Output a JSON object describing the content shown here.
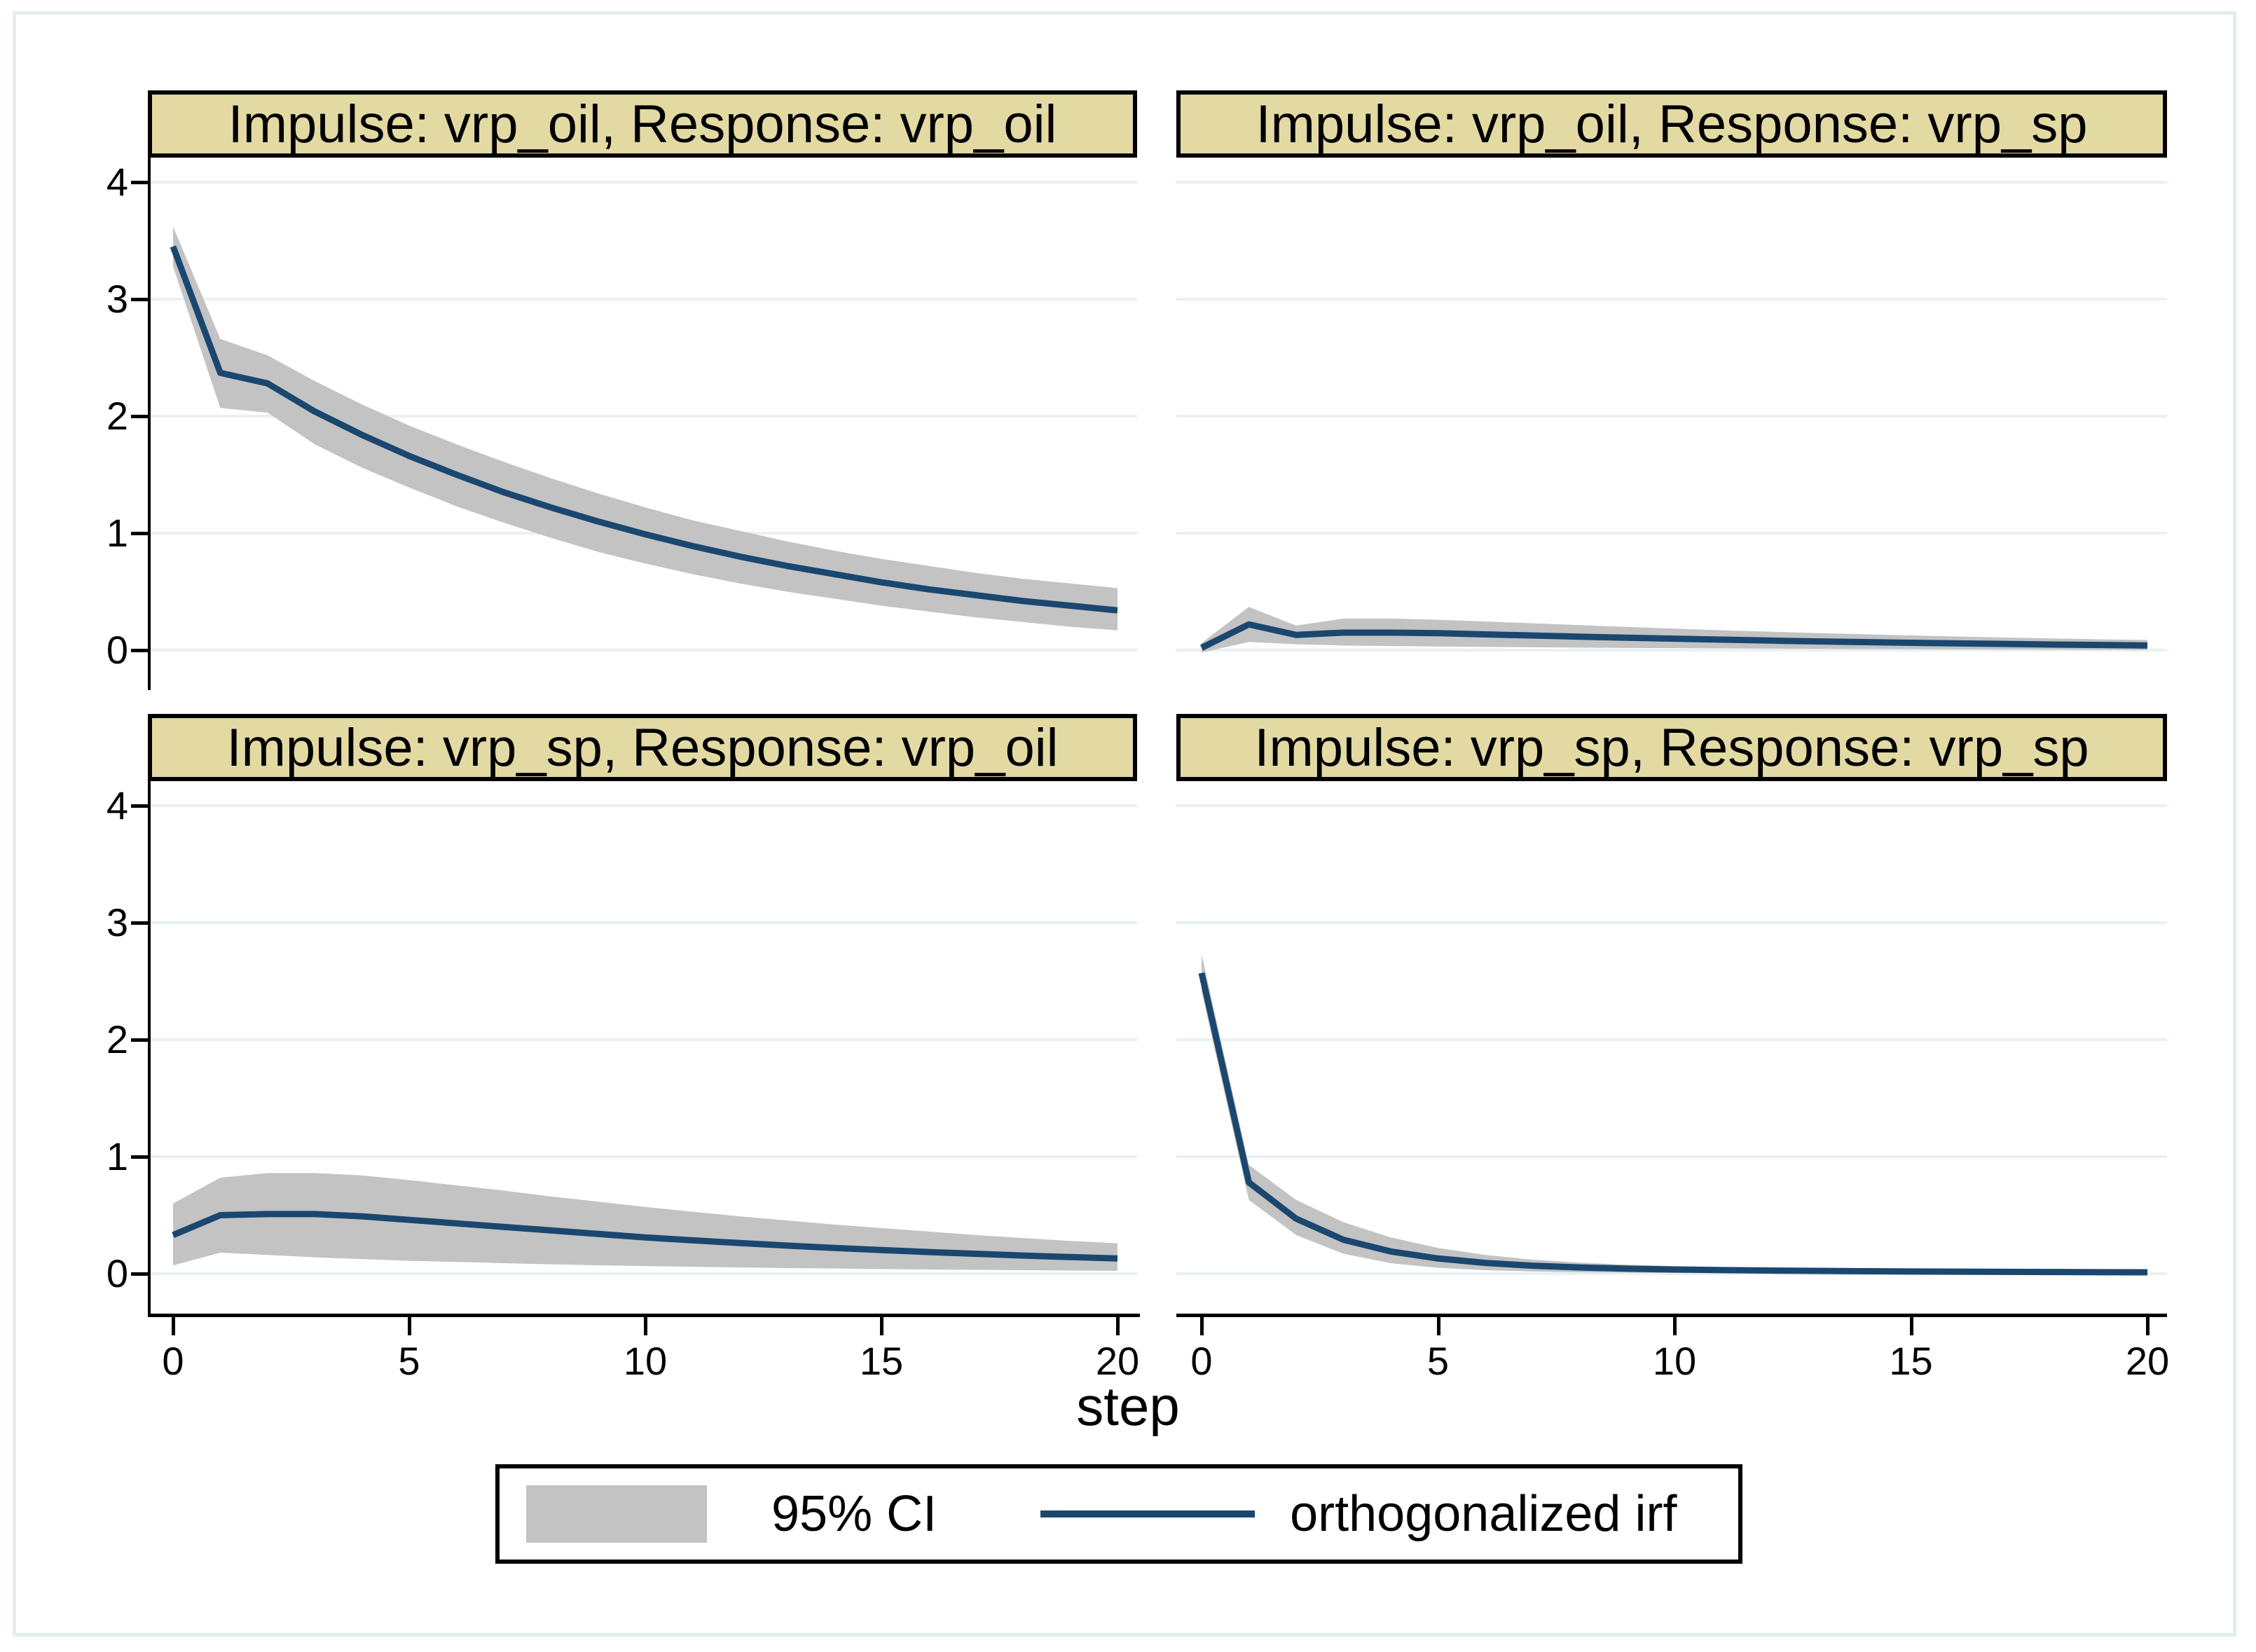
{
  "figure": {
    "xlabel": "step",
    "legend": {
      "ci_label": "95% CI",
      "irf_label": "orthogonalized irf"
    },
    "colors": {
      "ci_band": "#c3c3c3",
      "irf_line": "#1a476f",
      "title_bg": "#e3d9a3",
      "title_border": "#000000",
      "gridline": "#e9f1f3",
      "axis": "#000000",
      "outer_frame": "#e3edf0",
      "background": "#ffffff"
    }
  },
  "chart_data": [
    {
      "type": "line",
      "title": "Impulse: vrp_oil, Response: vrp_oil",
      "xlabel": "step",
      "x": [
        0,
        1,
        2,
        3,
        4,
        5,
        6,
        7,
        8,
        9,
        10,
        11,
        12,
        13,
        14,
        15,
        16,
        17,
        18,
        19,
        20
      ],
      "xticks": [
        0,
        5,
        10,
        15,
        20
      ],
      "yticks": [
        0,
        1,
        2,
        3,
        4
      ],
      "ylim": [
        -0.34,
        4.21
      ],
      "grid": true,
      "series": [
        {
          "name": "orthogonalized irf",
          "values": [
            3.45,
            2.37,
            2.28,
            2.04,
            1.84,
            1.66,
            1.5,
            1.35,
            1.22,
            1.1,
            0.99,
            0.89,
            0.8,
            0.72,
            0.65,
            0.58,
            0.52,
            0.47,
            0.42,
            0.38,
            0.34
          ]
        },
        {
          "name": "95% CI upper",
          "values": [
            3.62,
            2.66,
            2.52,
            2.3,
            2.1,
            1.92,
            1.76,
            1.61,
            1.47,
            1.34,
            1.22,
            1.11,
            1.02,
            0.93,
            0.85,
            0.78,
            0.72,
            0.66,
            0.61,
            0.57,
            0.53
          ]
        },
        {
          "name": "95% CI lower",
          "values": [
            3.28,
            2.07,
            2.03,
            1.76,
            1.56,
            1.39,
            1.23,
            1.09,
            0.96,
            0.84,
            0.74,
            0.65,
            0.57,
            0.5,
            0.44,
            0.38,
            0.33,
            0.28,
            0.24,
            0.2,
            0.17
          ]
        }
      ]
    },
    {
      "type": "line",
      "title": "Impulse: vrp_oil, Response: vrp_sp",
      "xlabel": "step",
      "x": [
        0,
        1,
        2,
        3,
        4,
        5,
        6,
        7,
        8,
        9,
        10,
        11,
        12,
        13,
        14,
        15,
        16,
        17,
        18,
        19,
        20
      ],
      "xticks": [
        0,
        5,
        10,
        15,
        20
      ],
      "yticks": [
        0,
        1,
        2,
        3,
        4
      ],
      "ylim": [
        -0.34,
        4.21
      ],
      "grid": true,
      "series": [
        {
          "name": "orthogonalized irf",
          "values": [
            0.02,
            0.22,
            0.13,
            0.15,
            0.15,
            0.145,
            0.135,
            0.125,
            0.115,
            0.106,
            0.098,
            0.09,
            0.082,
            0.075,
            0.069,
            0.063,
            0.058,
            0.053,
            0.048,
            0.044,
            0.04
          ]
        },
        {
          "name": "95% CI upper",
          "values": [
            0.06,
            0.37,
            0.21,
            0.27,
            0.27,
            0.26,
            0.245,
            0.23,
            0.214,
            0.198,
            0.184,
            0.17,
            0.158,
            0.146,
            0.136,
            0.126,
            0.117,
            0.108,
            0.1,
            0.093,
            0.087
          ]
        },
        {
          "name": "95% CI lower",
          "values": [
            -0.02,
            0.07,
            0.05,
            0.04,
            0.035,
            0.031,
            0.028,
            0.025,
            0.022,
            0.019,
            0.017,
            0.015,
            0.013,
            0.011,
            0.009,
            0.008,
            0.006,
            0.005,
            0.004,
            0.003,
            0.002
          ]
        }
      ]
    },
    {
      "type": "line",
      "title": "Impulse: vrp_sp, Response: vrp_oil",
      "xlabel": "step",
      "x": [
        0,
        1,
        2,
        3,
        4,
        5,
        6,
        7,
        8,
        9,
        10,
        11,
        12,
        13,
        14,
        15,
        16,
        17,
        18,
        19,
        20
      ],
      "xticks": [
        0,
        5,
        10,
        15,
        20
      ],
      "yticks": [
        0,
        1,
        2,
        3,
        4
      ],
      "ylim": [
        -0.34,
        4.21
      ],
      "grid": true,
      "series": [
        {
          "name": "orthogonalized irf",
          "values": [
            0.33,
            0.5,
            0.51,
            0.51,
            0.49,
            0.46,
            0.43,
            0.4,
            0.37,
            0.34,
            0.31,
            0.285,
            0.262,
            0.24,
            0.22,
            0.202,
            0.185,
            0.17,
            0.155,
            0.142,
            0.13
          ]
        },
        {
          "name": "95% CI upper",
          "values": [
            0.6,
            0.82,
            0.86,
            0.86,
            0.84,
            0.8,
            0.755,
            0.71,
            0.66,
            0.615,
            0.57,
            0.53,
            0.49,
            0.455,
            0.42,
            0.39,
            0.36,
            0.33,
            0.305,
            0.28,
            0.26
          ]
        },
        {
          "name": "95% CI lower",
          "values": [
            0.07,
            0.18,
            0.16,
            0.14,
            0.125,
            0.11,
            0.1,
            0.09,
            0.08,
            0.072,
            0.065,
            0.059,
            0.053,
            0.048,
            0.044,
            0.04,
            0.036,
            0.033,
            0.03,
            0.027,
            0.025
          ]
        }
      ]
    },
    {
      "type": "line",
      "title": "Impulse: vrp_sp, Response: vrp_sp",
      "xlabel": "step",
      "x": [
        0,
        1,
        2,
        3,
        4,
        5,
        6,
        7,
        8,
        9,
        10,
        11,
        12,
        13,
        14,
        15,
        16,
        17,
        18,
        19,
        20
      ],
      "xticks": [
        0,
        5,
        10,
        15,
        20
      ],
      "yticks": [
        0,
        1,
        2,
        3,
        4
      ],
      "ylim": [
        -0.34,
        4.21
      ],
      "grid": true,
      "series": [
        {
          "name": "orthogonalized irf",
          "values": [
            2.57,
            0.78,
            0.47,
            0.29,
            0.19,
            0.13,
            0.092,
            0.068,
            0.053,
            0.043,
            0.036,
            0.031,
            0.027,
            0.024,
            0.021,
            0.019,
            0.017,
            0.016,
            0.014,
            0.013,
            0.012
          ]
        },
        {
          "name": "95% CI upper",
          "values": [
            2.73,
            0.93,
            0.63,
            0.44,
            0.31,
            0.22,
            0.16,
            0.12,
            0.094,
            0.077,
            0.064,
            0.054,
            0.047,
            0.041,
            0.036,
            0.032,
            0.029,
            0.026,
            0.024,
            0.022,
            0.02
          ]
        },
        {
          "name": "95% CI lower",
          "values": [
            2.41,
            0.63,
            0.33,
            0.17,
            0.09,
            0.05,
            0.03,
            0.019,
            0.012,
            0.008,
            0.005,
            0.004,
            0.003,
            0.002,
            0.001,
            0.001,
            0.0,
            0.0,
            0.0,
            0.0,
            0.0
          ]
        }
      ]
    }
  ]
}
